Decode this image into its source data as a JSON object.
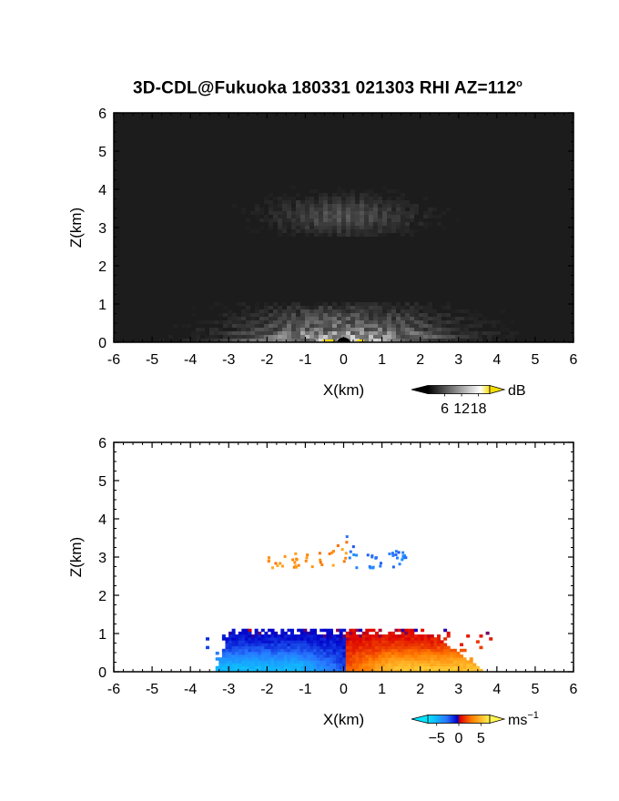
{
  "title": "3D-CDL@Fukuoka 180331 021303 RHI AZ=112",
  "title_superscript": "o",
  "chart_data": [
    {
      "type": "heatmap",
      "name": "",
      "xlabel": "X(km)",
      "ylabel": "Z(km)",
      "xlim": [
        -6,
        6
      ],
      "ylim": [
        0,
        6
      ],
      "xticks": [
        "-6",
        "-5",
        "-4",
        "-3",
        "-2",
        "-1",
        "0",
        "1",
        "2",
        "3",
        "4",
        "5",
        "6"
      ],
      "yticks": [
        "0",
        "1",
        "2",
        "3",
        "4",
        "5",
        "6"
      ],
      "colormap": "grayscale",
      "colorbar": {
        "label": "dB",
        "ticks": [
          "6",
          "12",
          "18"
        ],
        "range": [
          0,
          22
        ]
      }
    },
    {
      "type": "heatmap",
      "name": "",
      "xlabel": "X(km)",
      "ylabel": "Z(km)",
      "xlim": [
        -6,
        6
      ],
      "ylim": [
        0,
        6
      ],
      "xticks": [
        "-6",
        "-5",
        "-4",
        "-3",
        "-2",
        "-1",
        "0",
        "1",
        "2",
        "3",
        "4",
        "5",
        "6"
      ],
      "yticks": [
        "0",
        "1",
        "2",
        "3",
        "4",
        "5",
        "6"
      ],
      "colormap": "blue-white-red-yellow",
      "colorbar": {
        "label": "ms",
        "label_superscript": "−1",
        "ticks": [
          "−5",
          "0",
          "5"
        ],
        "range": [
          -7,
          7
        ]
      }
    }
  ]
}
